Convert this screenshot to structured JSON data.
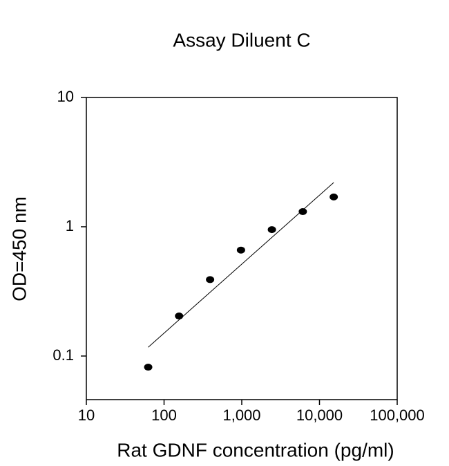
{
  "chart_data": {
    "type": "scatter",
    "title": "Assay Diluent C",
    "x_label": "Rat GDNF concentration (pg/ml)",
    "y_label": "OD=450 nm",
    "x_scale": "log",
    "y_scale": "log",
    "x": [
      62.5,
      156,
      391,
      977,
      2441,
      6103,
      15259
    ],
    "values": [
      0.082,
      0.204,
      0.39,
      0.66,
      0.95,
      1.31,
      1.7
    ],
    "color": "#000000",
    "fit": {
      "x": [
        62.5,
        15259
      ],
      "y": [
        0.117,
        2.2
      ],
      "color": "#000000"
    },
    "xlim": [
      10,
      100000
    ],
    "xticks": [
      10,
      100,
      {
        "value": 1000,
        "label": "1,000"
      },
      {
        "value": 10000,
        "label": "10,000"
      },
      {
        "value": 100000,
        "label": "100,000"
      }
    ],
    "ylim": [
      0.046,
      10
    ],
    "yticks": [
      0.1,
      1,
      10
    ]
  }
}
